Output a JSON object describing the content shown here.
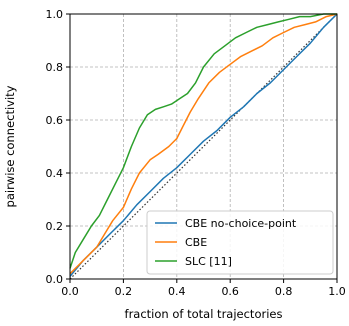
{
  "chart_data": {
    "type": "line",
    "title": "",
    "xlabel": "fraction of total trajectories",
    "ylabel": "pairwise connectivity",
    "xlim": [
      0,
      1
    ],
    "ylim": [
      0,
      1
    ],
    "xticks": [
      0.0,
      0.2,
      0.4,
      0.6,
      0.8,
      1.0
    ],
    "yticks": [
      0.0,
      0.2,
      0.4,
      0.6,
      0.8,
      1.0
    ],
    "xtick_labels": [
      "0.0",
      "0.2",
      "0.4",
      "0.6",
      "0.8",
      "1.0"
    ],
    "ytick_labels": [
      "0.0",
      "0.2",
      "0.4",
      "0.6",
      "0.8",
      "1.0"
    ],
    "grid": true,
    "legend_position": "bottom-right",
    "reference_line": {
      "style": "dotted",
      "color": "#333333",
      "x": [
        0,
        1
      ],
      "y": [
        0,
        1
      ]
    },
    "series": [
      {
        "name": "CBE no-choice-point",
        "color": "#1f77b4",
        "x": [
          0.0,
          0.05,
          0.1,
          0.15,
          0.2,
          0.25,
          0.3,
          0.35,
          0.4,
          0.45,
          0.5,
          0.55,
          0.6,
          0.65,
          0.7,
          0.75,
          0.8,
          0.85,
          0.9,
          0.95,
          1.0
        ],
        "y": [
          0.01,
          0.07,
          0.12,
          0.17,
          0.22,
          0.28,
          0.33,
          0.38,
          0.42,
          0.47,
          0.52,
          0.56,
          0.61,
          0.65,
          0.7,
          0.74,
          0.79,
          0.84,
          0.89,
          0.95,
          1.0
        ]
      },
      {
        "name": "CBE",
        "color": "#ff7f0e",
        "x": [
          0.0,
          0.03,
          0.06,
          0.1,
          0.13,
          0.16,
          0.2,
          0.23,
          0.26,
          0.3,
          0.33,
          0.37,
          0.4,
          0.42,
          0.45,
          0.48,
          0.52,
          0.56,
          0.6,
          0.64,
          0.68,
          0.72,
          0.76,
          0.8,
          0.84,
          0.88,
          0.92,
          0.96,
          1.0
        ],
        "y": [
          0.02,
          0.05,
          0.08,
          0.12,
          0.17,
          0.22,
          0.27,
          0.34,
          0.4,
          0.45,
          0.47,
          0.5,
          0.53,
          0.57,
          0.63,
          0.68,
          0.74,
          0.78,
          0.81,
          0.84,
          0.86,
          0.88,
          0.91,
          0.93,
          0.95,
          0.96,
          0.97,
          0.99,
          1.0
        ]
      },
      {
        "name": "SLC [11]",
        "color": "#2ca02c",
        "x": [
          0.0,
          0.02,
          0.05,
          0.08,
          0.11,
          0.14,
          0.17,
          0.2,
          0.23,
          0.26,
          0.29,
          0.32,
          0.35,
          0.38,
          0.41,
          0.44,
          0.47,
          0.5,
          0.54,
          0.58,
          0.62,
          0.66,
          0.7,
          0.74,
          0.78,
          0.82,
          0.86,
          0.9,
          0.95,
          1.0
        ],
        "y": [
          0.04,
          0.1,
          0.15,
          0.2,
          0.24,
          0.3,
          0.36,
          0.42,
          0.5,
          0.57,
          0.62,
          0.64,
          0.65,
          0.66,
          0.68,
          0.7,
          0.74,
          0.8,
          0.85,
          0.88,
          0.91,
          0.93,
          0.95,
          0.96,
          0.97,
          0.98,
          0.99,
          0.99,
          1.0,
          1.0
        ]
      }
    ]
  }
}
